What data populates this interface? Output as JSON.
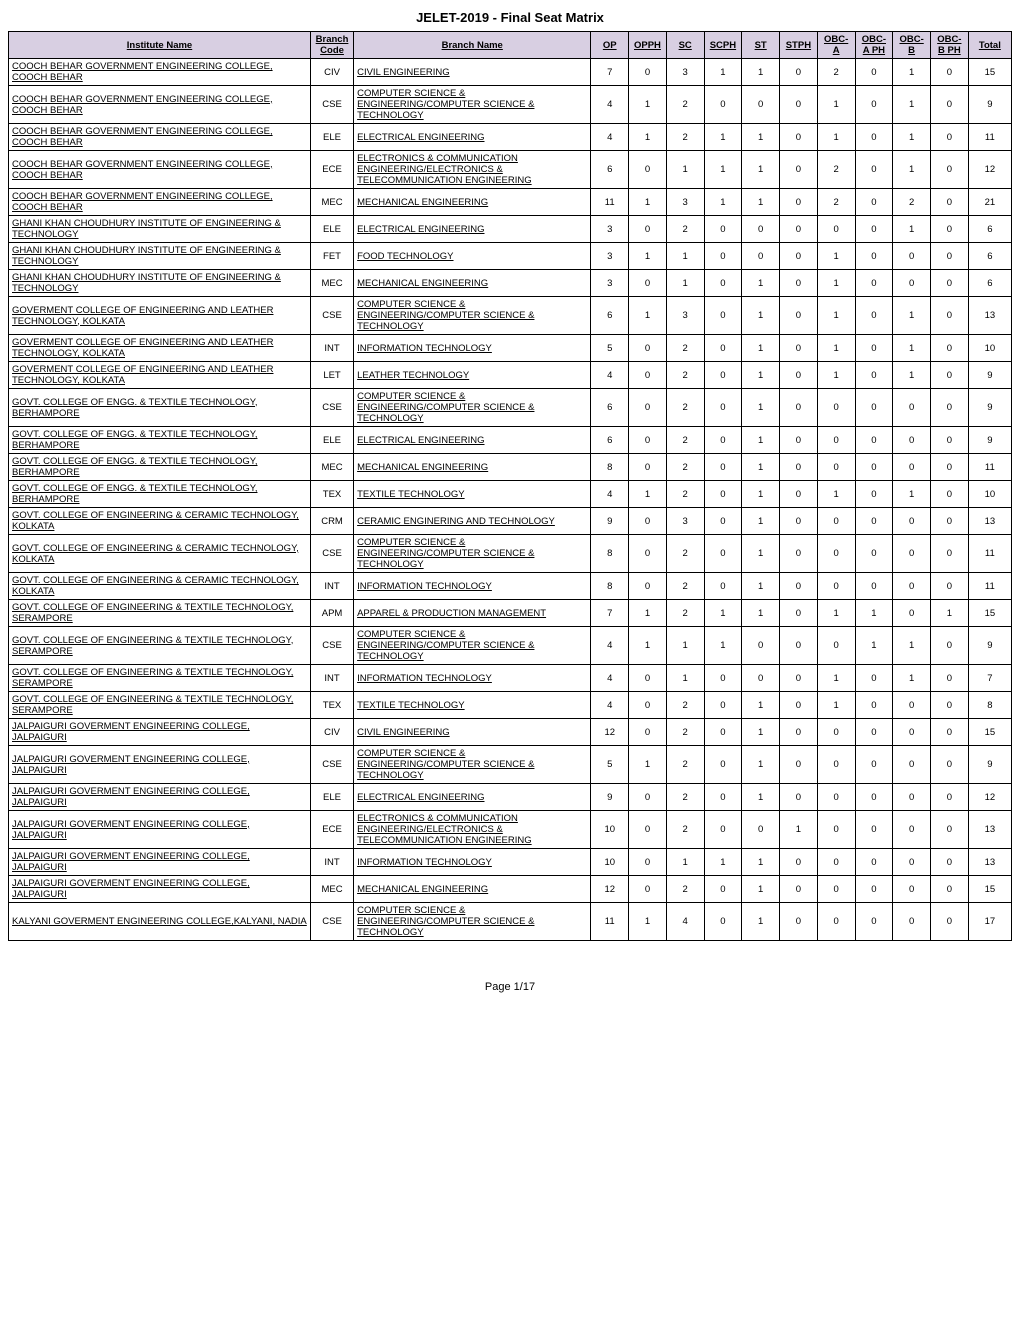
{
  "title": "JELET-2019 - Final Seat Matrix",
  "footer": "Page 1/17",
  "columns": [
    "Institute Name",
    "Branch Code",
    "Branch Name",
    "OP",
    "OPPH",
    "SC",
    "SCPH",
    "ST",
    "STPH",
    "OBC-A",
    "OBC-A PH",
    "OBC-B",
    "OBC-B PH",
    "Total"
  ],
  "rows": [
    [
      "COOCH BEHAR GOVERNMENT ENGINEERING COLLEGE, COOCH BEHAR",
      "CIV",
      "CIVIL ENGINEERING",
      "7",
      "0",
      "3",
      "1",
      "1",
      "0",
      "2",
      "0",
      "1",
      "0",
      "15"
    ],
    [
      "COOCH BEHAR GOVERNMENT ENGINEERING COLLEGE, COOCH BEHAR",
      "CSE",
      "COMPUTER SCIENCE & ENGINEERING/COMPUTER SCIENCE & TECHNOLOGY",
      "4",
      "1",
      "2",
      "0",
      "0",
      "0",
      "1",
      "0",
      "1",
      "0",
      "9"
    ],
    [
      "COOCH BEHAR GOVERNMENT ENGINEERING COLLEGE, COOCH BEHAR",
      "ELE",
      "ELECTRICAL ENGINEERING",
      "4",
      "1",
      "2",
      "1",
      "1",
      "0",
      "1",
      "0",
      "1",
      "0",
      "11"
    ],
    [
      "COOCH BEHAR GOVERNMENT ENGINEERING COLLEGE, COOCH BEHAR",
      "ECE",
      "ELECTRONICS & COMMUNICATION ENGINEERING/ELECTRONICS & TELECOMMUNICATION ENGINEERING",
      "6",
      "0",
      "1",
      "1",
      "1",
      "0",
      "2",
      "0",
      "1",
      "0",
      "12"
    ],
    [
      "COOCH BEHAR GOVERNMENT ENGINEERING COLLEGE, COOCH BEHAR",
      "MEC",
      "MECHANICAL ENGINEERING",
      "11",
      "1",
      "3",
      "1",
      "1",
      "0",
      "2",
      "0",
      "2",
      "0",
      "21"
    ],
    [
      "GHANI KHAN CHOUDHURY INSTITUTE OF ENGINEERING & TECHNOLOGY",
      "ELE",
      "ELECTRICAL ENGINEERING",
      "3",
      "0",
      "2",
      "0",
      "0",
      "0",
      "0",
      "0",
      "1",
      "0",
      "6"
    ],
    [
      "GHANI KHAN CHOUDHURY INSTITUTE OF ENGINEERING & TECHNOLOGY",
      "FET",
      "FOOD TECHNOLOGY",
      "3",
      "1",
      "1",
      "0",
      "0",
      "0",
      "1",
      "0",
      "0",
      "0",
      "6"
    ],
    [
      "GHANI KHAN CHOUDHURY INSTITUTE OF ENGINEERING & TECHNOLOGY",
      "MEC",
      "MECHANICAL ENGINEERING",
      "3",
      "0",
      "1",
      "0",
      "1",
      "0",
      "1",
      "0",
      "0",
      "0",
      "6"
    ],
    [
      "GOVERMENT COLLEGE OF ENGINEERING AND LEATHER TECHNOLOGY, KOLKATA",
      "CSE",
      "COMPUTER SCIENCE & ENGINEERING/COMPUTER SCIENCE & TECHNOLOGY",
      "6",
      "1",
      "3",
      "0",
      "1",
      "0",
      "1",
      "0",
      "1",
      "0",
      "13"
    ],
    [
      "GOVERMENT COLLEGE OF ENGINEERING AND LEATHER TECHNOLOGY, KOLKATA",
      "INT",
      "INFORMATION TECHNOLOGY",
      "5",
      "0",
      "2",
      "0",
      "1",
      "0",
      "1",
      "0",
      "1",
      "0",
      "10"
    ],
    [
      "GOVERMENT COLLEGE OF ENGINEERING AND LEATHER TECHNOLOGY, KOLKATA",
      "LET",
      "LEATHER TECHNOLOGY",
      "4",
      "0",
      "2",
      "0",
      "1",
      "0",
      "1",
      "0",
      "1",
      "0",
      "9"
    ],
    [
      "GOVT. COLLEGE OF ENGG. & TEXTILE TECHNOLOGY, BERHAMPORE",
      "CSE",
      "COMPUTER SCIENCE & ENGINEERING/COMPUTER SCIENCE & TECHNOLOGY",
      "6",
      "0",
      "2",
      "0",
      "1",
      "0",
      "0",
      "0",
      "0",
      "0",
      "9"
    ],
    [
      "GOVT. COLLEGE OF ENGG. & TEXTILE TECHNOLOGY, BERHAMPORE",
      "ELE",
      "ELECTRICAL ENGINEERING",
      "6",
      "0",
      "2",
      "0",
      "1",
      "0",
      "0",
      "0",
      "0",
      "0",
      "9"
    ],
    [
      "GOVT. COLLEGE OF ENGG. & TEXTILE TECHNOLOGY, BERHAMPORE",
      "MEC",
      "MECHANICAL ENGINEERING",
      "8",
      "0",
      "2",
      "0",
      "1",
      "0",
      "0",
      "0",
      "0",
      "0",
      "11"
    ],
    [
      "GOVT. COLLEGE OF ENGG. & TEXTILE TECHNOLOGY, BERHAMPORE",
      "TEX",
      "TEXTILE TECHNOLOGY",
      "4",
      "1",
      "2",
      "0",
      "1",
      "0",
      "1",
      "0",
      "1",
      "0",
      "10"
    ],
    [
      "GOVT. COLLEGE OF ENGINEERING & CERAMIC TECHNOLOGY, KOLKATA",
      "CRM",
      "CERAMIC ENGINERING AND TECHNOLOGY",
      "9",
      "0",
      "3",
      "0",
      "1",
      "0",
      "0",
      "0",
      "0",
      "0",
      "13"
    ],
    [
      "GOVT. COLLEGE OF ENGINEERING & CERAMIC TECHNOLOGY, KOLKATA",
      "CSE",
      "COMPUTER SCIENCE & ENGINEERING/COMPUTER SCIENCE & TECHNOLOGY",
      "8",
      "0",
      "2",
      "0",
      "1",
      "0",
      "0",
      "0",
      "0",
      "0",
      "11"
    ],
    [
      "GOVT. COLLEGE OF ENGINEERING & CERAMIC TECHNOLOGY, KOLKATA",
      "INT",
      "INFORMATION TECHNOLOGY",
      "8",
      "0",
      "2",
      "0",
      "1",
      "0",
      "0",
      "0",
      "0",
      "0",
      "11"
    ],
    [
      "GOVT. COLLEGE OF ENGINEERING & TEXTILE TECHNOLOGY, SERAMPORE",
      "APM",
      "APPAREL & PRODUCTION MANAGEMENT",
      "7",
      "1",
      "2",
      "1",
      "1",
      "0",
      "1",
      "1",
      "0",
      "1",
      "15"
    ],
    [
      "GOVT. COLLEGE OF ENGINEERING & TEXTILE TECHNOLOGY, SERAMPORE",
      "CSE",
      "COMPUTER SCIENCE & ENGINEERING/COMPUTER SCIENCE & TECHNOLOGY",
      "4",
      "1",
      "1",
      "1",
      "0",
      "0",
      "0",
      "1",
      "1",
      "0",
      "9"
    ],
    [
      "GOVT. COLLEGE OF ENGINEERING & TEXTILE TECHNOLOGY, SERAMPORE",
      "INT",
      "INFORMATION TECHNOLOGY",
      "4",
      "0",
      "1",
      "0",
      "0",
      "0",
      "1",
      "0",
      "1",
      "0",
      "7"
    ],
    [
      "GOVT. COLLEGE OF ENGINEERING & TEXTILE TECHNOLOGY, SERAMPORE",
      "TEX",
      "TEXTILE TECHNOLOGY",
      "4",
      "0",
      "2",
      "0",
      "1",
      "0",
      "1",
      "0",
      "0",
      "0",
      "8"
    ],
    [
      "JALPAIGURI GOVERMENT ENGINEERING COLLEGE, JALPAIGURI",
      "CIV",
      "CIVIL ENGINEERING",
      "12",
      "0",
      "2",
      "0",
      "1",
      "0",
      "0",
      "0",
      "0",
      "0",
      "15"
    ],
    [
      "JALPAIGURI GOVERMENT ENGINEERING COLLEGE, JALPAIGURI",
      "CSE",
      "COMPUTER SCIENCE & ENGINEERING/COMPUTER SCIENCE & TECHNOLOGY",
      "5",
      "1",
      "2",
      "0",
      "1",
      "0",
      "0",
      "0",
      "0",
      "0",
      "9"
    ],
    [
      "JALPAIGURI GOVERMENT ENGINEERING COLLEGE, JALPAIGURI",
      "ELE",
      "ELECTRICAL ENGINEERING",
      "9",
      "0",
      "2",
      "0",
      "1",
      "0",
      "0",
      "0",
      "0",
      "0",
      "12"
    ],
    [
      "JALPAIGURI GOVERMENT ENGINEERING COLLEGE, JALPAIGURI",
      "ECE",
      "ELECTRONICS & COMMUNICATION ENGINEERING/ELECTRONICS & TELECOMMUNICATION ENGINEERING",
      "10",
      "0",
      "2",
      "0",
      "0",
      "1",
      "0",
      "0",
      "0",
      "0",
      "13"
    ],
    [
      "JALPAIGURI GOVERMENT ENGINEERING COLLEGE, JALPAIGURI",
      "INT",
      "INFORMATION TECHNOLOGY",
      "10",
      "0",
      "1",
      "1",
      "1",
      "0",
      "0",
      "0",
      "0",
      "0",
      "13"
    ],
    [
      "JALPAIGURI GOVERMENT ENGINEERING COLLEGE, JALPAIGURI",
      "MEC",
      "MECHANICAL ENGINEERING",
      "12",
      "0",
      "2",
      "0",
      "1",
      "0",
      "0",
      "0",
      "0",
      "0",
      "15"
    ],
    [
      "KALYANI GOVERMENT ENGINEERING COLLEGE,KALYANI, NADIA",
      "CSE",
      "COMPUTER SCIENCE & ENGINEERING/COMPUTER SCIENCE & TECHNOLOGY",
      "11",
      "1",
      "4",
      "0",
      "1",
      "0",
      "0",
      "0",
      "0",
      "0",
      "17"
    ]
  ]
}
